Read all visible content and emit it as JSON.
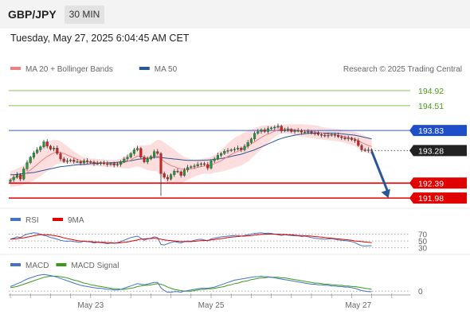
{
  "header": {
    "symbol": "GBP/JPY",
    "timeframe": "30 MIN"
  },
  "timestamp": "Tuesday, May 27, 2025 6:04:45 AM CET",
  "colors": {
    "ma20": "#f08080",
    "ma50": "#2b5797",
    "resistance": "#8cc152",
    "support": "#e00000",
    "pivot": "#3060d0",
    "current": "#222222",
    "rsi": "#4472c4",
    "rsi_ma": "#e00000",
    "macd": "#4472c4",
    "macd_signal": "#3a9a1a",
    "arrow": "#2b5797"
  },
  "legend_main": [
    {
      "label": "MA 20 + Bollinger Bands",
      "color": "#f08080"
    },
    {
      "label": "MA 50",
      "color": "#2b5797"
    }
  ],
  "copyright": "Research © 2025 Trading Central",
  "legend_rsi": [
    {
      "label": "RSI",
      "color": "#4472c4"
    },
    {
      "label": "9MA",
      "color": "#e00000"
    }
  ],
  "legend_macd": [
    {
      "label": "MACD",
      "color": "#4472c4"
    },
    {
      "label": "MACD Signal",
      "color": "#3a9a1a"
    }
  ],
  "x_labels": [
    {
      "label": "May 23",
      "t": 24
    },
    {
      "label": "May 25",
      "t": 60
    },
    {
      "label": "May 27",
      "t": 104
    }
  ],
  "chart_data": {
    "type": "candlestick",
    "title": "GBP/JPY",
    "price_range": [
      191.7,
      195.4
    ],
    "levels": [
      {
        "value": 194.92,
        "label": "194.92",
        "kind": "resistance"
      },
      {
        "value": 194.51,
        "label": "194.51",
        "kind": "resistance"
      },
      {
        "value": 193.83,
        "label": "193.83",
        "kind": "pivot"
      },
      {
        "value": 193.28,
        "label": "193.28",
        "kind": "current"
      },
      {
        "value": 192.39,
        "label": "192.39",
        "kind": "support"
      },
      {
        "value": 191.98,
        "label": "191.98",
        "kind": "support"
      }
    ],
    "forecast_arrow": {
      "from": {
        "t": 108,
        "value": 193.26
      },
      "to": {
        "t": 113,
        "value": 191.98
      }
    },
    "close": [
      192.48,
      192.55,
      192.62,
      192.5,
      192.78,
      192.95,
      193.1,
      193.22,
      193.3,
      193.38,
      193.52,
      193.4,
      193.32,
      193.35,
      193.2,
      193.05,
      192.98,
      193.0,
      193.02,
      192.98,
      192.98,
      192.94,
      193.0,
      192.98,
      192.96,
      192.92,
      192.93,
      192.95,
      192.92,
      192.9,
      192.92,
      192.88,
      192.9,
      192.98,
      193.05,
      193.1,
      193.2,
      193.3,
      193.34,
      193.1,
      192.97,
      193.05,
      193.12,
      193.25,
      193.2,
      192.65,
      192.55,
      192.5,
      192.62,
      192.72,
      192.7,
      192.6,
      192.75,
      192.82,
      192.84,
      192.86,
      192.9,
      192.92,
      192.9,
      192.8,
      193.0,
      193.05,
      193.15,
      193.2,
      193.26,
      193.28,
      193.3,
      193.32,
      193.35,
      193.3,
      193.4,
      193.5,
      193.6,
      193.75,
      193.8,
      193.85,
      193.8,
      193.88,
      193.9,
      193.92,
      193.95,
      193.82,
      193.85,
      193.86,
      193.8,
      193.82,
      193.83,
      193.78,
      193.79,
      193.8,
      193.76,
      193.75,
      193.72,
      193.7,
      193.68,
      193.7,
      193.72,
      193.7,
      193.66,
      193.63,
      193.6,
      193.62,
      193.58,
      193.55,
      193.42,
      193.3,
      193.28,
      193.3,
      193.28
    ],
    "ma20": [
      192.5,
      192.52,
      192.55,
      192.57,
      192.62,
      192.68,
      192.75,
      192.82,
      192.9,
      192.98,
      193.05,
      193.12,
      193.17,
      193.22,
      193.24,
      193.23,
      193.2,
      193.16,
      193.12,
      193.08,
      193.04,
      193.0,
      192.98,
      192.97,
      192.96,
      192.96,
      192.95,
      192.95,
      192.94,
      192.93,
      192.92,
      192.92,
      192.92,
      192.93,
      192.95,
      192.98,
      193.02,
      193.08,
      193.13,
      193.12,
      193.1,
      193.08,
      193.09,
      193.12,
      193.14,
      193.06,
      192.98,
      192.92,
      192.87,
      192.84,
      192.8,
      192.78,
      192.77,
      192.77,
      192.78,
      192.8,
      192.82,
      192.84,
      192.86,
      192.86,
      192.88,
      192.92,
      192.96,
      193.0,
      193.06,
      193.12,
      193.17,
      193.22,
      193.26,
      193.3,
      193.35,
      193.4,
      193.46,
      193.52,
      193.58,
      193.64,
      193.69,
      193.73,
      193.77,
      193.81,
      193.85,
      193.86,
      193.87,
      193.87,
      193.86,
      193.85,
      193.84,
      193.83,
      193.82,
      193.81,
      193.8,
      193.79,
      193.78,
      193.76,
      193.74,
      193.73,
      193.72,
      193.71,
      193.7,
      193.68,
      193.66,
      193.64,
      193.62,
      193.6,
      193.55,
      193.5,
      193.46,
      193.42,
      193.39
    ],
    "ma50": [
      192.62,
      192.62,
      192.63,
      192.64,
      192.65,
      192.66,
      192.67,
      192.68,
      192.7,
      192.72,
      192.74,
      192.76,
      192.78,
      192.8,
      192.82,
      192.84,
      192.85,
      192.86,
      192.87,
      192.88,
      192.89,
      192.9,
      192.9,
      192.91,
      192.92,
      192.92,
      192.93,
      192.93,
      192.94,
      192.94,
      192.95,
      192.95,
      192.96,
      192.97,
      192.98,
      192.99,
      193.0,
      193.02,
      193.04,
      193.05,
      193.06,
      193.07,
      193.08,
      193.09,
      193.1,
      193.09,
      193.08,
      193.07,
      193.06,
      193.05,
      193.04,
      193.03,
      193.02,
      193.01,
      193.01,
      193.01,
      193.01,
      193.01,
      193.02,
      193.02,
      193.03,
      193.04,
      193.05,
      193.06,
      193.08,
      193.1,
      193.12,
      193.14,
      193.16,
      193.18,
      193.21,
      193.24,
      193.27,
      193.3,
      193.34,
      193.38,
      193.42,
      193.46,
      193.5,
      193.54,
      193.58,
      193.61,
      193.64,
      193.66,
      193.68,
      193.7,
      193.72,
      193.73,
      193.74,
      193.75,
      193.75,
      193.76,
      193.76,
      193.76,
      193.76,
      193.76,
      193.76,
      193.75,
      193.75,
      193.74,
      193.73,
      193.72,
      193.71,
      193.7,
      193.68,
      193.66,
      193.64,
      193.62,
      193.6
    ],
    "bb_width": [
      0.22,
      0.23,
      0.24,
      0.25,
      0.27,
      0.3,
      0.33,
      0.36,
      0.38,
      0.4,
      0.41,
      0.4,
      0.38,
      0.36,
      0.33,
      0.3,
      0.27,
      0.24,
      0.21,
      0.18,
      0.16,
      0.14,
      0.12,
      0.11,
      0.1,
      0.1,
      0.1,
      0.1,
      0.1,
      0.1,
      0.1,
      0.1,
      0.11,
      0.13,
      0.16,
      0.19,
      0.22,
      0.25,
      0.28,
      0.3,
      0.32,
      0.34,
      0.36,
      0.4,
      0.44,
      0.5,
      0.52,
      0.52,
      0.5,
      0.47,
      0.43,
      0.39,
      0.34,
      0.3,
      0.26,
      0.23,
      0.22,
      0.21,
      0.21,
      0.22,
      0.23,
      0.25,
      0.27,
      0.3,
      0.33,
      0.36,
      0.39,
      0.41,
      0.42,
      0.43,
      0.43,
      0.42,
      0.4,
      0.38,
      0.35,
      0.32,
      0.28,
      0.24,
      0.2,
      0.16,
      0.13,
      0.12,
      0.12,
      0.13,
      0.14,
      0.15,
      0.16,
      0.17,
      0.17,
      0.18,
      0.18,
      0.18,
      0.18,
      0.17,
      0.17,
      0.17,
      0.17,
      0.17,
      0.17,
      0.17,
      0.17,
      0.18,
      0.19,
      0.2,
      0.21,
      0.22,
      0.22,
      0.22,
      0.22
    ],
    "rsi": {
      "ticks": [
        {
          "value": 70,
          "label": "70"
        },
        {
          "value": 50,
          "label": "50"
        },
        {
          "value": 30,
          "label": "30"
        }
      ],
      "range": [
        20,
        85
      ],
      "rsi": [
        55,
        58,
        62,
        60,
        66,
        70,
        72,
        74,
        73,
        70,
        66,
        64,
        60,
        58,
        55,
        52,
        50,
        49,
        50,
        48,
        47,
        46,
        50,
        48,
        47,
        44,
        46,
        45,
        44,
        42,
        44,
        43,
        45,
        48,
        52,
        56,
        60,
        62,
        64,
        58,
        52,
        56,
        58,
        62,
        60,
        40,
        38,
        42,
        45,
        48,
        46,
        44,
        48,
        50,
        49,
        52,
        54,
        55,
        53,
        50,
        56,
        58,
        60,
        62,
        63,
        64,
        65,
        66,
        66,
        64,
        66,
        68,
        70,
        72,
        73,
        74,
        72,
        73,
        72,
        70,
        68,
        66,
        68,
        67,
        66,
        65,
        65,
        63,
        64,
        62,
        60,
        58,
        57,
        56,
        55,
        56,
        57,
        55,
        53,
        52,
        51,
        50,
        48,
        45,
        40,
        36,
        35,
        36,
        36
      ],
      "ma9": [
        55,
        56,
        57,
        58,
        59,
        61,
        63,
        65,
        67,
        68,
        68,
        68,
        67,
        66,
        64,
        62,
        59,
        57,
        55,
        53,
        51,
        50,
        49,
        48,
        48,
        47,
        47,
        46,
        46,
        45,
        45,
        44,
        44,
        45,
        46,
        47,
        49,
        51,
        53,
        55,
        56,
        57,
        57,
        58,
        57,
        55,
        53,
        52,
        51,
        50,
        49,
        48,
        48,
        48,
        48,
        49,
        50,
        51,
        51,
        52,
        53,
        54,
        56,
        57,
        58,
        60,
        61,
        62,
        63,
        64,
        64,
        65,
        66,
        67,
        68,
        69,
        70,
        70,
        70,
        70,
        70,
        69,
        69,
        68,
        68,
        67,
        66,
        66,
        65,
        65,
        64,
        63,
        62,
        61,
        60,
        59,
        58,
        57,
        56,
        55,
        54,
        53,
        52,
        50,
        49,
        48,
        47,
        46,
        45
      ]
    },
    "macd": {
      "tick": {
        "value": 0,
        "label": "0"
      },
      "range": [
        -0.08,
        0.32
      ],
      "macd": [
        0.08,
        0.1,
        0.13,
        0.15,
        0.18,
        0.21,
        0.23,
        0.25,
        0.27,
        0.28,
        0.29,
        0.28,
        0.27,
        0.26,
        0.24,
        0.22,
        0.2,
        0.18,
        0.16,
        0.14,
        0.12,
        0.1,
        0.09,
        0.08,
        0.07,
        0.06,
        0.05,
        0.05,
        0.04,
        0.03,
        0.03,
        0.02,
        0.02,
        0.03,
        0.05,
        0.07,
        0.09,
        0.11,
        0.13,
        0.12,
        0.11,
        0.12,
        0.14,
        0.15,
        0.15,
        0.06,
        0.01,
        -0.02,
        -0.02,
        -0.01,
        -0.01,
        -0.02,
        0.0,
        0.01,
        0.02,
        0.03,
        0.04,
        0.05,
        0.05,
        0.05,
        0.06,
        0.07,
        0.09,
        0.11,
        0.13,
        0.15,
        0.17,
        0.19,
        0.2,
        0.21,
        0.22,
        0.23,
        0.24,
        0.25,
        0.25,
        0.26,
        0.25,
        0.25,
        0.24,
        0.23,
        0.22,
        0.21,
        0.2,
        0.19,
        0.18,
        0.17,
        0.16,
        0.15,
        0.14,
        0.13,
        0.12,
        0.12,
        0.11,
        0.11,
        0.1,
        0.1,
        0.09,
        0.09,
        0.08,
        0.08,
        0.07,
        0.07,
        0.06,
        0.05,
        0.03,
        0.01,
        0.0,
        -0.01,
        -0.01
      ],
      "signal": [
        0.06,
        0.07,
        0.08,
        0.1,
        0.12,
        0.14,
        0.16,
        0.18,
        0.2,
        0.22,
        0.24,
        0.25,
        0.26,
        0.26,
        0.26,
        0.25,
        0.24,
        0.23,
        0.21,
        0.19,
        0.18,
        0.16,
        0.14,
        0.13,
        0.11,
        0.1,
        0.09,
        0.08,
        0.07,
        0.06,
        0.05,
        0.04,
        0.04,
        0.03,
        0.03,
        0.04,
        0.05,
        0.06,
        0.08,
        0.09,
        0.1,
        0.1,
        0.11,
        0.12,
        0.13,
        0.12,
        0.1,
        0.07,
        0.05,
        0.03,
        0.02,
        0.01,
        0.0,
        0.0,
        0.0,
        0.01,
        0.02,
        0.03,
        0.03,
        0.04,
        0.04,
        0.05,
        0.06,
        0.07,
        0.08,
        0.1,
        0.11,
        0.13,
        0.14,
        0.16,
        0.17,
        0.18,
        0.2,
        0.21,
        0.22,
        0.23,
        0.23,
        0.24,
        0.24,
        0.24,
        0.24,
        0.23,
        0.23,
        0.22,
        0.21,
        0.2,
        0.19,
        0.18,
        0.17,
        0.16,
        0.15,
        0.14,
        0.14,
        0.13,
        0.12,
        0.12,
        0.11,
        0.11,
        0.1,
        0.1,
        0.09,
        0.09,
        0.08,
        0.08,
        0.07,
        0.06,
        0.05,
        0.04,
        0.03
      ]
    }
  }
}
